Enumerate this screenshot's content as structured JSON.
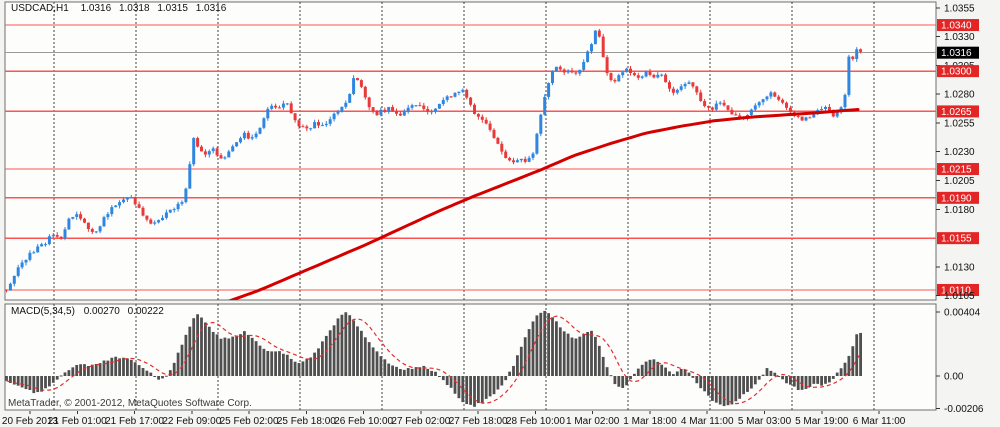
{
  "header": {
    "symbol": "USDCAD,H1",
    "open": "1.0316",
    "high": "1.0318",
    "low": "1.0315",
    "close": "1.0316"
  },
  "indicator": {
    "name": "MACD(5,34,5)",
    "value": "0.00270",
    "signal_value": "0.00222"
  },
  "footer": {
    "copyright": "MetaTrader, © 2001-2012, MetaQuotes Software Corp."
  },
  "price_axis": {
    "labels": [
      {
        "text": "1.0355",
        "value": 1.0355,
        "type": "normal"
      },
      {
        "text": "1.0340",
        "value": 1.034,
        "type": "level"
      },
      {
        "text": "1.0330",
        "value": 1.033,
        "type": "normal"
      },
      {
        "text": "1.0316",
        "value": 1.0316,
        "type": "current"
      },
      {
        "text": "1.0305",
        "value": 1.0305,
        "type": "normal"
      },
      {
        "text": "1.0300",
        "value": 1.03,
        "type": "level"
      },
      {
        "text": "1.0280",
        "value": 1.028,
        "type": "normal"
      },
      {
        "text": "1.0265",
        "value": 1.0265,
        "type": "level"
      },
      {
        "text": "1.0255",
        "value": 1.0255,
        "type": "normal"
      },
      {
        "text": "1.0230",
        "value": 1.023,
        "type": "normal"
      },
      {
        "text": "1.0215",
        "value": 1.0215,
        "type": "level"
      },
      {
        "text": "1.0205",
        "value": 1.0205,
        "type": "normal"
      },
      {
        "text": "1.0190",
        "value": 1.019,
        "type": "level"
      },
      {
        "text": "1.0180",
        "value": 1.018,
        "type": "normal"
      },
      {
        "text": "1.0155",
        "value": 1.0155,
        "type": "level"
      },
      {
        "text": "1.0130",
        "value": 1.013,
        "type": "normal"
      },
      {
        "text": "1.0110",
        "value": 1.011,
        "type": "level"
      },
      {
        "text": "1.0105",
        "value": 1.0105,
        "type": "normal"
      }
    ]
  },
  "macd_axis": {
    "labels": [
      {
        "text": "0.00404",
        "value": 0.00404
      },
      {
        "text": "0.00",
        "value": 0
      },
      {
        "text": "-0.00206",
        "value": -0.00206
      }
    ]
  },
  "time_axis": {
    "labels": [
      "20 Feb 2013",
      "21 Feb 01:00",
      "21 Feb 17:00",
      "22 Feb 09:00",
      "25 Feb 02:00",
      "25 Feb 18:00",
      "26 Feb 10:00",
      "27 Feb 02:00",
      "27 Feb 18:00",
      "28 Feb 10:00",
      "1 Mar 02:00",
      "1 Mar 18:00",
      "4 Mar 11:00",
      "5 Mar 03:00",
      "5 Mar 19:00",
      "6 Mar 11:00"
    ]
  },
  "colors": {
    "panel_bg": "#fdfdfc",
    "frame": "#6e6e6e",
    "grid": "#444444",
    "bull": "#2e86e0",
    "bear": "#e83a3a",
    "level_line": "#ff5252",
    "level_box": "#e32525",
    "current_line": "#9a9a9a",
    "current_box": "#000000",
    "ma_line": "#d40000",
    "histogram": "#4f4f4f",
    "signal_line": "#e03030",
    "axis_text": "#111111",
    "tick": "#333333"
  },
  "chart_data": {
    "type": "candlestick",
    "title": "USDCAD,H1",
    "current_price": 1.0316,
    "price_range": [
      1.01013,
      1.036
    ],
    "levels": [
      1.034,
      1.03,
      1.0265,
      1.0215,
      1.019,
      1.0155,
      1.011
    ],
    "candle_count": 220,
    "price_path": [
      [
        5,
        1.0108
      ],
      [
        14,
        1.0122
      ],
      [
        24,
        1.0136
      ],
      [
        34,
        1.0144
      ],
      [
        44,
        1.015
      ],
      [
        52,
        1.0158
      ],
      [
        60,
        1.0154
      ],
      [
        68,
        1.017
      ],
      [
        76,
        1.0177
      ],
      [
        84,
        1.017
      ],
      [
        90,
        1.0158
      ],
      [
        97,
        1.0162
      ],
      [
        105,
        1.0174
      ],
      [
        113,
        1.0182
      ],
      [
        121,
        1.0187
      ],
      [
        128,
        1.0192
      ],
      [
        136,
        1.0184
      ],
      [
        144,
        1.0174
      ],
      [
        152,
        1.0167
      ],
      [
        160,
        1.0171
      ],
      [
        168,
        1.0177
      ],
      [
        176,
        1.0181
      ],
      [
        183,
        1.0188
      ],
      [
        189,
        1.0212
      ],
      [
        193,
        1.0243
      ],
      [
        198,
        1.0233
      ],
      [
        205,
        1.0226
      ],
      [
        212,
        1.0232
      ],
      [
        218,
        1.0228
      ],
      [
        224,
        1.0222
      ],
      [
        230,
        1.0232
      ],
      [
        237,
        1.024
      ],
      [
        244,
        1.0245
      ],
      [
        251,
        1.024
      ],
      [
        258,
        1.0247
      ],
      [
        265,
        1.0263
      ],
      [
        272,
        1.0271
      ],
      [
        279,
        1.0267
      ],
      [
        286,
        1.0273
      ],
      [
        293,
        1.026
      ],
      [
        300,
        1.0252
      ],
      [
        308,
        1.025
      ],
      [
        316,
        1.0255
      ],
      [
        324,
        1.0251
      ],
      [
        332,
        1.026
      ],
      [
        340,
        1.0268
      ],
      [
        348,
        1.0276
      ],
      [
        355,
        1.0297
      ],
      [
        361,
        1.0286
      ],
      [
        368,
        1.0271
      ],
      [
        375,
        1.0262
      ],
      [
        383,
        1.0266
      ],
      [
        391,
        1.0268
      ],
      [
        399,
        1.0262
      ],
      [
        407,
        1.0268
      ],
      [
        415,
        1.0272
      ],
      [
        423,
        1.0268
      ],
      [
        431,
        1.0264
      ],
      [
        439,
        1.0271
      ],
      [
        447,
        1.0277
      ],
      [
        455,
        1.0281
      ],
      [
        462,
        1.0286
      ],
      [
        468,
        1.0273
      ],
      [
        476,
        1.0262
      ],
      [
        484,
        1.0257
      ],
      [
        492,
        1.0247
      ],
      [
        499,
        1.0233
      ],
      [
        506,
        1.0224
      ],
      [
        513,
        1.0219
      ],
      [
        520,
        1.0226
      ],
      [
        527,
        1.0221
      ],
      [
        533,
        1.023
      ],
      [
        539,
        1.0252
      ],
      [
        545,
        1.028
      ],
      [
        551,
        1.0297
      ],
      [
        557,
        1.0305
      ],
      [
        563,
        1.0296
      ],
      [
        569,
        1.0303
      ],
      [
        576,
        1.0296
      ],
      [
        583,
        1.0308
      ],
      [
        590,
        1.0321
      ],
      [
        596,
        1.0337
      ],
      [
        601,
        1.0326
      ],
      [
        606,
        1.0298
      ],
      [
        612,
        1.029
      ],
      [
        619,
        1.0296
      ],
      [
        626,
        1.0301
      ],
      [
        633,
        1.0297
      ],
      [
        640,
        1.0292
      ],
      [
        647,
        1.03
      ],
      [
        654,
        1.0295
      ],
      [
        661,
        1.0298
      ],
      [
        668,
        1.0287
      ],
      [
        675,
        1.0281
      ],
      [
        682,
        1.0288
      ],
      [
        689,
        1.0292
      ],
      [
        696,
        1.0281
      ],
      [
        703,
        1.0272
      ],
      [
        711,
        1.0267
      ],
      [
        719,
        1.0272
      ],
      [
        727,
        1.0267
      ],
      [
        735,
        1.0261
      ],
      [
        742,
        1.0257
      ],
      [
        750,
        1.0264
      ],
      [
        758,
        1.0272
      ],
      [
        765,
        1.0278
      ],
      [
        772,
        1.0282
      ],
      [
        780,
        1.0274
      ],
      [
        788,
        1.0267
      ],
      [
        795,
        1.0261
      ],
      [
        802,
        1.0257
      ],
      [
        810,
        1.0261
      ],
      [
        818,
        1.0265
      ],
      [
        826,
        1.0268
      ],
      [
        833,
        1.0261
      ],
      [
        840,
        1.0267
      ],
      [
        845,
        1.028
      ],
      [
        848,
        1.0314
      ],
      [
        853,
        1.0311
      ],
      [
        857,
        1.0318
      ],
      [
        860,
        1.0316
      ]
    ],
    "ma_path": [
      [
        228,
        1.01
      ],
      [
        260,
        1.011
      ],
      [
        295,
        1.0123
      ],
      [
        330,
        1.0136
      ],
      [
        365,
        1.0149
      ],
      [
        400,
        1.0163
      ],
      [
        435,
        1.0177
      ],
      [
        470,
        1.019
      ],
      [
        505,
        1.0202
      ],
      [
        540,
        1.0214
      ],
      [
        575,
        1.0227
      ],
      [
        610,
        1.0237
      ],
      [
        645,
        1.0246
      ],
      [
        680,
        1.0252
      ],
      [
        715,
        1.0257
      ],
      [
        750,
        1.026
      ],
      [
        785,
        1.0262
      ],
      [
        820,
        1.0264
      ],
      [
        862,
        1.0267
      ]
    ],
    "macd_panel": {
      "range": [
        -0.00215,
        0.00455
      ],
      "value": 0.0027,
      "signal": 0.00222,
      "path": [
        [
          5,
          -0.0002
        ],
        [
          15,
          -0.0006
        ],
        [
          25,
          -0.0008
        ],
        [
          36,
          -0.0011
        ],
        [
          46,
          -0.0008
        ],
        [
          56,
          -0.0003
        ],
        [
          66,
          0.0003
        ],
        [
          78,
          0.0008
        ],
        [
          90,
          0.0006
        ],
        [
          102,
          0.0009
        ],
        [
          116,
          0.0012
        ],
        [
          132,
          0.001
        ],
        [
          146,
          0.0004
        ],
        [
          154,
          0.0
        ],
        [
          161,
          -0.0003
        ],
        [
          170,
          0.0003
        ],
        [
          180,
          0.0017
        ],
        [
          190,
          0.0032
        ],
        [
          197,
          0.004
        ],
        [
          205,
          0.0034
        ],
        [
          213,
          0.0028
        ],
        [
          221,
          0.0024
        ],
        [
          229,
          0.0024
        ],
        [
          237,
          0.0026
        ],
        [
          245,
          0.0028
        ],
        [
          253,
          0.0024
        ],
        [
          261,
          0.0018
        ],
        [
          269,
          0.0015
        ],
        [
          277,
          0.0016
        ],
        [
          285,
          0.0014
        ],
        [
          293,
          0.001
        ],
        [
          301,
          0.0008
        ],
        [
          311,
          0.0012
        ],
        [
          321,
          0.002
        ],
        [
          331,
          0.0029
        ],
        [
          340,
          0.0038
        ],
        [
          347,
          0.0041
        ],
        [
          355,
          0.0034
        ],
        [
          364,
          0.0026
        ],
        [
          373,
          0.0018
        ],
        [
          382,
          0.0012
        ],
        [
          391,
          0.0007
        ],
        [
          401,
          0.0004
        ],
        [
          412,
          0.0005
        ],
        [
          423,
          0.0006
        ],
        [
          434,
          0.0003
        ],
        [
          444,
          -0.0003
        ],
        [
          454,
          -0.001
        ],
        [
          464,
          -0.0017
        ],
        [
          474,
          -0.0019
        ],
        [
          484,
          -0.0016
        ],
        [
          494,
          -0.0011
        ],
        [
          504,
          -0.0004
        ],
        [
          513,
          0.0006
        ],
        [
          521,
          0.0018
        ],
        [
          529,
          0.003
        ],
        [
          537,
          0.0038
        ],
        [
          544,
          0.0042
        ],
        [
          551,
          0.0038
        ],
        [
          559,
          0.0032
        ],
        [
          567,
          0.0027
        ],
        [
          575,
          0.0023
        ],
        [
          584,
          0.0027
        ],
        [
          592,
          0.0029
        ],
        [
          600,
          0.0018
        ],
        [
          608,
          0.0004
        ],
        [
          616,
          -0.0006
        ],
        [
          623,
          -0.0008
        ],
        [
          630,
          -0.0003
        ],
        [
          638,
          0.0004
        ],
        [
          646,
          0.0009
        ],
        [
          653,
          0.0011
        ],
        [
          660,
          0.0008
        ],
        [
          668,
          0.0004
        ],
        [
          674,
          0.0001
        ],
        [
          680,
          0.0005
        ],
        [
          687,
          0.0003
        ],
        [
          694,
          -0.0002
        ],
        [
          703,
          -0.0009
        ],
        [
          712,
          -0.0015
        ],
        [
          722,
          -0.0019
        ],
        [
          732,
          -0.0018
        ],
        [
          742,
          -0.0013
        ],
        [
          752,
          -0.0007
        ],
        [
          761,
          -0.0001
        ],
        [
          767,
          0.0005
        ],
        [
          774,
          0.0002
        ],
        [
          781,
          -0.0002
        ],
        [
          789,
          -0.0005
        ],
        [
          799,
          -0.0009
        ],
        [
          807,
          -0.0008
        ],
        [
          815,
          -0.0005
        ],
        [
          823,
          -0.0006
        ],
        [
          831,
          -0.0003
        ],
        [
          839,
          0.0003
        ],
        [
          847,
          0.001
        ],
        [
          853,
          0.0019
        ],
        [
          858,
          0.0029
        ],
        [
          861,
          0.0027
        ]
      ]
    }
  }
}
